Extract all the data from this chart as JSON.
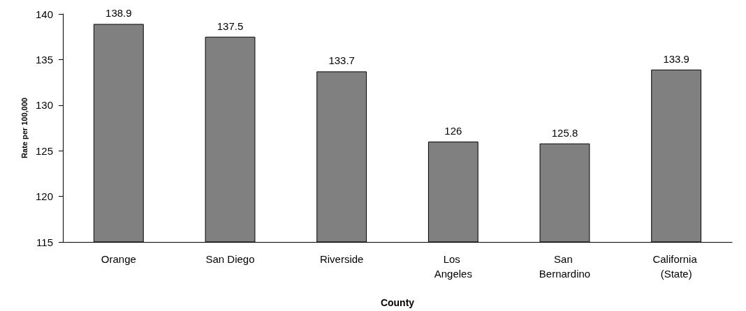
{
  "chart_data": {
    "type": "bar",
    "xlabel": "County",
    "ylabel": "Rate per 100,000",
    "categories": [
      "Orange",
      "San Diego",
      "Riverside",
      "Los Angeles",
      "San Bernardino",
      "California (State)"
    ],
    "values": [
      138.9,
      137.5,
      133.7,
      126,
      125.8,
      133.9
    ],
    "color": "#808080",
    "data_labels": true,
    "ylim": [
      115,
      140
    ],
    "yticks": [
      115,
      120,
      125,
      130,
      135,
      140
    ],
    "grid": false
  }
}
